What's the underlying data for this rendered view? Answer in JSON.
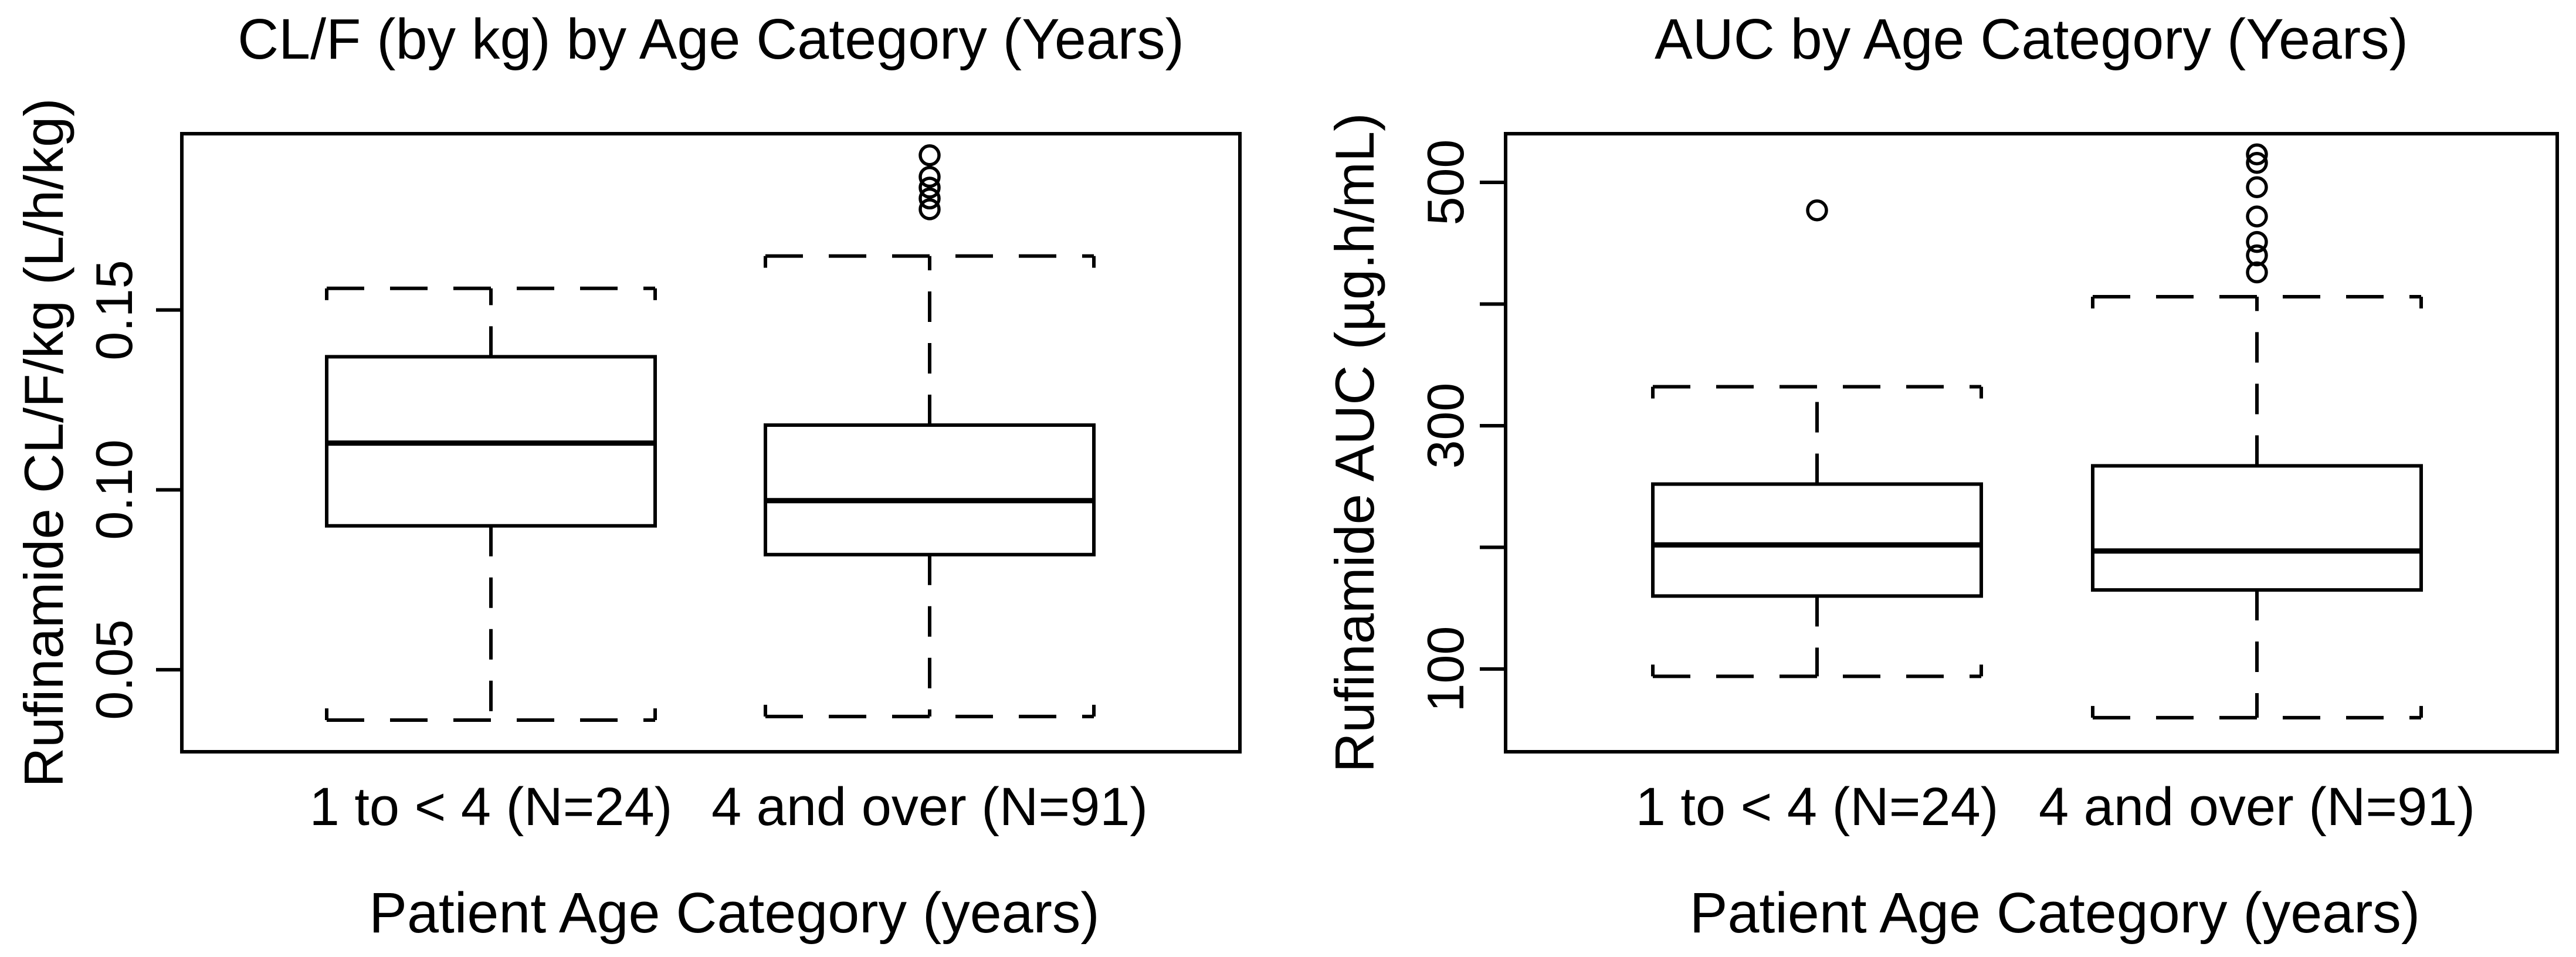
{
  "figure": {
    "background": "#ffffff",
    "line_color": "#000000"
  },
  "chart_data": [
    {
      "type": "boxplot",
      "title": "CL/F (by kg) by Age Category (Years)",
      "xlabel": "Patient Age Category (years)",
      "ylabel": "Rufinamide CL/F/kg (L/h/kg)",
      "categories": [
        "1 to < 4 (N=24)",
        "4 and over (N=91)"
      ],
      "ylim": [
        0.0272,
        0.199
      ],
      "grid": false,
      "yticks": [
        {
          "value": 0.05,
          "label": "0.05"
        },
        {
          "value": 0.1,
          "label": "0.10"
        },
        {
          "value": 0.15,
          "label": "0.15"
        }
      ],
      "minor_yticks": [],
      "boxes": [
        {
          "category": "1 to < 4 (N=24)",
          "whisker_low": 0.036,
          "q1": 0.09,
          "median": 0.113,
          "q3": 0.137,
          "whisker_high": 0.156,
          "outliers": []
        },
        {
          "category": "4 and over (N=91)",
          "whisker_low": 0.037,
          "q1": 0.082,
          "median": 0.097,
          "q3": 0.118,
          "whisker_high": 0.165,
          "outliers": [
            0.178,
            0.181,
            0.184,
            0.187,
            0.193
          ]
        }
      ]
    },
    {
      "type": "boxplot",
      "title": "AUC by Age Category (Years)",
      "xlabel": "Patient Age Category (years)",
      "ylabel": "Rufinamide AUC (µg.h/mL)",
      "categories": [
        "1 to < 4 (N=24)",
        "4 and over (N=91)"
      ],
      "ylim": [
        32,
        540
      ],
      "grid": false,
      "yticks": [
        {
          "value": 100,
          "label": "100"
        },
        {
          "value": 300,
          "label": "300"
        },
        {
          "value": 500,
          "label": "500"
        }
      ],
      "minor_yticks": [
        200,
        400
      ],
      "boxes": [
        {
          "category": "1 to < 4 (N=24)",
          "whisker_low": 94,
          "q1": 160,
          "median": 202,
          "q3": 252,
          "whisker_high": 332,
          "outliers": [
            477
          ]
        },
        {
          "category": "4 and over (N=91)",
          "whisker_low": 60,
          "q1": 165,
          "median": 197,
          "q3": 267,
          "whisker_high": 406,
          "outliers": [
            426,
            440,
            451,
            472,
            496,
            516,
            523
          ]
        }
      ]
    }
  ]
}
